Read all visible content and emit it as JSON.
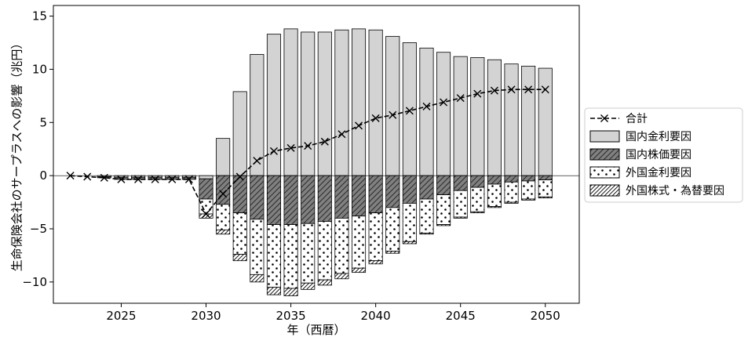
{
  "chart_data": {
    "type": "bar",
    "xlabel": "年（西暦）",
    "ylabel": "生命保険会社のサープラスへの影響（兆円）",
    "xlim": [
      2021,
      2052
    ],
    "ylim": [
      -12,
      16
    ],
    "xticks": [
      2025,
      2030,
      2035,
      2040,
      2045,
      2050
    ],
    "yticks": [
      -10,
      -5,
      0,
      5,
      10,
      15
    ],
    "grid": false,
    "legend_position": "right",
    "x": [
      2022,
      2023,
      2024,
      2025,
      2026,
      2027,
      2028,
      2029,
      2030,
      2031,
      2032,
      2033,
      2034,
      2035,
      2036,
      2037,
      2038,
      2039,
      2040,
      2041,
      2042,
      2043,
      2044,
      2045,
      2046,
      2047,
      2048,
      2049,
      2050
    ],
    "series": [
      {
        "name": "国内金利要因",
        "kind": "bar",
        "color": "#d3d3d3",
        "pattern": "solid",
        "values": [
          0,
          0,
          -0.1,
          -0.15,
          -0.15,
          -0.15,
          -0.15,
          -0.15,
          -0.3,
          3.5,
          7.9,
          11.4,
          13.3,
          13.8,
          13.5,
          13.5,
          13.7,
          13.8,
          13.7,
          13.1,
          12.5,
          12.0,
          11.6,
          11.2,
          11.1,
          10.9,
          10.5,
          10.3,
          10.1
        ]
      },
      {
        "name": "国内株価要因",
        "kind": "bar",
        "color": "#808080",
        "pattern": "hatch",
        "values": [
          0,
          0,
          -0.1,
          -0.2,
          -0.2,
          -0.2,
          -0.2,
          -0.2,
          -1.9,
          -2.7,
          -3.5,
          -4.1,
          -4.6,
          -4.6,
          -4.5,
          -4.3,
          -4.0,
          -3.8,
          -3.5,
          -3.0,
          -2.6,
          -2.2,
          -1.8,
          -1.4,
          -1.1,
          -0.8,
          -0.6,
          -0.5,
          -0.4
        ]
      },
      {
        "name": "外国金利要因",
        "kind": "bar",
        "color": "#ffffff",
        "pattern": "dots",
        "values": [
          0,
          0,
          0,
          0,
          0,
          0,
          0,
          0,
          -1.4,
          -2.4,
          -3.9,
          -5.2,
          -5.9,
          -6.0,
          -5.6,
          -5.5,
          -5.2,
          -4.9,
          -4.5,
          -4.1,
          -3.6,
          -3.2,
          -2.8,
          -2.5,
          -2.3,
          -2.1,
          -1.9,
          -1.7,
          -1.6
        ]
      },
      {
        "name": "外国株式・為替要因",
        "kind": "bar",
        "color": "#ffffff",
        "pattern": "hatch-fine",
        "values": [
          0,
          0,
          0,
          0,
          0,
          0,
          0,
          0,
          -0.4,
          -0.4,
          -0.6,
          -0.7,
          -0.7,
          -0.7,
          -0.6,
          -0.5,
          -0.5,
          -0.4,
          -0.3,
          -0.2,
          -0.2,
          -0.1,
          -0.1,
          -0.1,
          -0.1,
          -0.1,
          -0.1,
          -0.1,
          -0.1
        ]
      },
      {
        "name": "合計",
        "kind": "line",
        "color": "#000000",
        "line_style": "dashed",
        "marker": "x",
        "values": [
          0,
          -0.1,
          -0.2,
          -0.35,
          -0.35,
          -0.35,
          -0.35,
          -0.35,
          -3.6,
          -1.7,
          -0.1,
          1.4,
          2.3,
          2.6,
          2.8,
          3.2,
          3.9,
          4.7,
          5.4,
          5.7,
          6.1,
          6.5,
          6.9,
          7.3,
          7.7,
          8.0,
          8.1,
          8.1,
          8.1
        ]
      }
    ]
  }
}
